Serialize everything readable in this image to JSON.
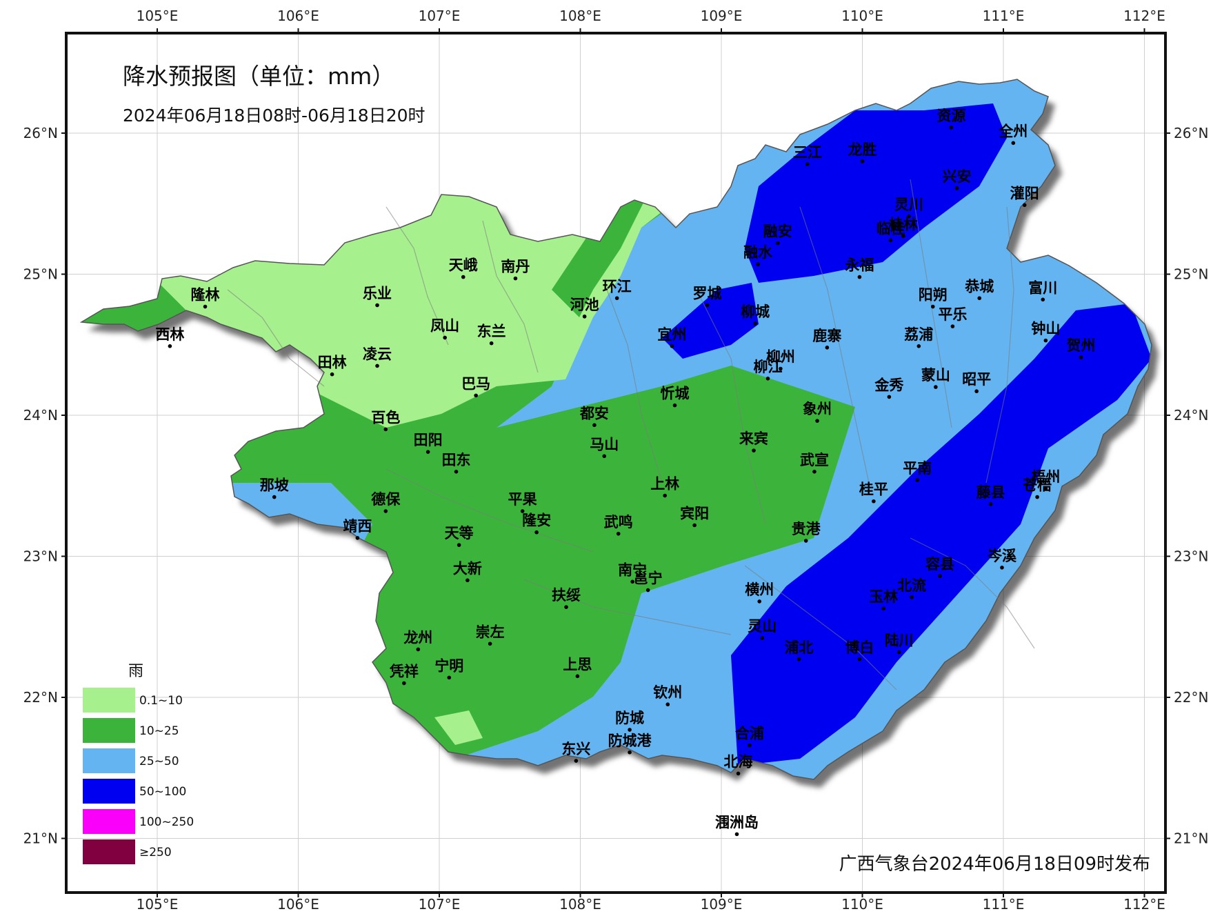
{
  "map": {
    "title": "降水预报图（单位：mm）",
    "subtitle": "2024年06月18日08时-06月18日20时",
    "issuer": "广西气象台2024年06月18日09时发布",
    "longitude_ticks": [
      "105°E",
      "106°E",
      "107°E",
      "108°E",
      "109°E",
      "110°E",
      "111°E",
      "112°E"
    ],
    "latitude_ticks": [
      "26°N",
      "25°N",
      "24°N",
      "23°N",
      "22°N",
      "21°N"
    ],
    "legend": {
      "title": "雨",
      "items": [
        {
          "label": "0.1~10",
          "color": "#a6f08e"
        },
        {
          "label": "10~25",
          "color": "#3cb43c"
        },
        {
          "label": "25~50",
          "color": "#63b4f0"
        },
        {
          "label": "50~100",
          "color": "#0000f0"
        },
        {
          "label": "100~250",
          "color": "#fa00fa"
        },
        {
          "label": "≥250",
          "color": "#800040"
        }
      ]
    },
    "cities": [
      {
        "name": "资源",
        "lon": 110.63,
        "lat": 26.04
      },
      {
        "name": "全州",
        "lon": 111.07,
        "lat": 25.93
      },
      {
        "name": "三江",
        "lon": 109.61,
        "lat": 25.78
      },
      {
        "name": "龙胜",
        "lon": 110.0,
        "lat": 25.8
      },
      {
        "name": "兴安",
        "lon": 110.67,
        "lat": 25.61
      },
      {
        "name": "灌阳",
        "lon": 111.15,
        "lat": 25.49
      },
      {
        "name": "灵川",
        "lon": 110.33,
        "lat": 25.41
      },
      {
        "name": "桂林",
        "lon": 110.29,
        "lat": 25.27
      },
      {
        "name": "临桂",
        "lon": 110.2,
        "lat": 25.24
      },
      {
        "name": "融安",
        "lon": 109.4,
        "lat": 25.22
      },
      {
        "name": "融水",
        "lon": 109.26,
        "lat": 25.07
      },
      {
        "name": "永福",
        "lon": 109.98,
        "lat": 24.98
      },
      {
        "name": "恭城",
        "lon": 110.83,
        "lat": 24.83
      },
      {
        "name": "富川",
        "lon": 111.28,
        "lat": 24.82
      },
      {
        "name": "阳朔",
        "lon": 110.5,
        "lat": 24.77
      },
      {
        "name": "平乐",
        "lon": 110.64,
        "lat": 24.63
      },
      {
        "name": "钟山",
        "lon": 111.3,
        "lat": 24.53
      },
      {
        "name": "贺州",
        "lon": 111.55,
        "lat": 24.41
      },
      {
        "name": "荔浦",
        "lon": 110.4,
        "lat": 24.49
      },
      {
        "name": "鹿寨",
        "lon": 109.75,
        "lat": 24.48
      },
      {
        "name": "罗城",
        "lon": 108.9,
        "lat": 24.78
      },
      {
        "name": "柳城",
        "lon": 109.24,
        "lat": 24.65
      },
      {
        "name": "宜州",
        "lon": 108.65,
        "lat": 24.49
      },
      {
        "name": "柳州",
        "lon": 109.42,
        "lat": 24.33
      },
      {
        "name": "柳江",
        "lon": 109.33,
        "lat": 24.26
      },
      {
        "name": "金秀",
        "lon": 110.19,
        "lat": 24.13
      },
      {
        "name": "蒙山",
        "lon": 110.52,
        "lat": 24.2
      },
      {
        "name": "昭平",
        "lon": 110.81,
        "lat": 24.17
      },
      {
        "name": "隆林",
        "lon": 105.34,
        "lat": 24.77
      },
      {
        "name": "西林",
        "lon": 105.09,
        "lat": 24.49
      },
      {
        "name": "乐业",
        "lon": 106.56,
        "lat": 24.78
      },
      {
        "name": "天峨",
        "lon": 107.17,
        "lat": 24.98
      },
      {
        "name": "南丹",
        "lon": 107.54,
        "lat": 24.97
      },
      {
        "name": "环江",
        "lon": 108.26,
        "lat": 24.83
      },
      {
        "name": "河池",
        "lon": 108.03,
        "lat": 24.7
      },
      {
        "name": "凤山",
        "lon": 107.04,
        "lat": 24.55
      },
      {
        "name": "东兰",
        "lon": 107.37,
        "lat": 24.51
      },
      {
        "name": "田林",
        "lon": 106.24,
        "lat": 24.29
      },
      {
        "name": "凌云",
        "lon": 106.56,
        "lat": 24.35
      },
      {
        "name": "巴马",
        "lon": 107.26,
        "lat": 24.14
      },
      {
        "name": "都安",
        "lon": 108.1,
        "lat": 23.93
      },
      {
        "name": "忻城",
        "lon": 108.67,
        "lat": 24.07
      },
      {
        "name": "象州",
        "lon": 109.68,
        "lat": 23.96
      },
      {
        "name": "百色",
        "lon": 106.62,
        "lat": 23.9
      },
      {
        "name": "田阳",
        "lon": 106.92,
        "lat": 23.74
      },
      {
        "name": "马山",
        "lon": 108.17,
        "lat": 23.71
      },
      {
        "name": "来宾",
        "lon": 109.23,
        "lat": 23.75
      },
      {
        "name": "田东",
        "lon": 107.12,
        "lat": 23.6
      },
      {
        "name": "武宣",
        "lon": 109.66,
        "lat": 23.6
      },
      {
        "name": "平南",
        "lon": 110.39,
        "lat": 23.54
      },
      {
        "name": "梧州",
        "lon": 111.3,
        "lat": 23.48
      },
      {
        "name": "苍梧",
        "lon": 111.24,
        "lat": 23.42
      },
      {
        "name": "藤县",
        "lon": 110.91,
        "lat": 23.37
      },
      {
        "name": "桂平",
        "lon": 110.08,
        "lat": 23.39
      },
      {
        "name": "那坡",
        "lon": 105.83,
        "lat": 23.42
      },
      {
        "name": "德保",
        "lon": 106.62,
        "lat": 23.32
      },
      {
        "name": "平果",
        "lon": 107.59,
        "lat": 23.32
      },
      {
        "name": "上林",
        "lon": 108.6,
        "lat": 23.43
      },
      {
        "name": "宾阳",
        "lon": 108.81,
        "lat": 23.22
      },
      {
        "name": "靖西",
        "lon": 106.42,
        "lat": 23.13
      },
      {
        "name": "天等",
        "lon": 107.14,
        "lat": 23.08
      },
      {
        "name": "隆安",
        "lon": 107.69,
        "lat": 23.17
      },
      {
        "name": "武鸣",
        "lon": 108.27,
        "lat": 23.16
      },
      {
        "name": "贵港",
        "lon": 109.6,
        "lat": 23.11
      },
      {
        "name": "岑溪",
        "lon": 110.99,
        "lat": 22.92
      },
      {
        "name": "大新",
        "lon": 107.2,
        "lat": 22.83
      },
      {
        "name": "南宁",
        "lon": 108.37,
        "lat": 22.82
      },
      {
        "name": "邕宁",
        "lon": 108.48,
        "lat": 22.76
      },
      {
        "name": "横州",
        "lon": 109.27,
        "lat": 22.68
      },
      {
        "name": "容县",
        "lon": 110.55,
        "lat": 22.86
      },
      {
        "name": "北流",
        "lon": 110.35,
        "lat": 22.71
      },
      {
        "name": "玉林",
        "lon": 110.15,
        "lat": 22.63
      },
      {
        "name": "扶绥",
        "lon": 107.9,
        "lat": 22.64
      },
      {
        "name": "龙州",
        "lon": 106.85,
        "lat": 22.34
      },
      {
        "name": "崇左",
        "lon": 107.36,
        "lat": 22.38
      },
      {
        "name": "灵山",
        "lon": 109.29,
        "lat": 22.42
      },
      {
        "name": "浦北",
        "lon": 109.55,
        "lat": 22.27
      },
      {
        "name": "博白",
        "lon": 109.98,
        "lat": 22.27
      },
      {
        "name": "陆川",
        "lon": 110.26,
        "lat": 22.32
      },
      {
        "name": "上思",
        "lon": 107.98,
        "lat": 22.15
      },
      {
        "name": "凭祥",
        "lon": 106.75,
        "lat": 22.1
      },
      {
        "name": "宁明",
        "lon": 107.07,
        "lat": 22.14
      },
      {
        "name": "钦州",
        "lon": 108.62,
        "lat": 21.95
      },
      {
        "name": "防城",
        "lon": 108.35,
        "lat": 21.77
      },
      {
        "name": "合浦",
        "lon": 109.2,
        "lat": 21.66
      },
      {
        "name": "防城港",
        "lon": 108.35,
        "lat": 21.61
      },
      {
        "name": "东兴",
        "lon": 107.97,
        "lat": 21.55
      },
      {
        "name": "北海",
        "lon": 109.12,
        "lat": 21.46
      },
      {
        "name": "涠洲岛",
        "lon": 109.11,
        "lat": 21.03
      }
    ]
  }
}
